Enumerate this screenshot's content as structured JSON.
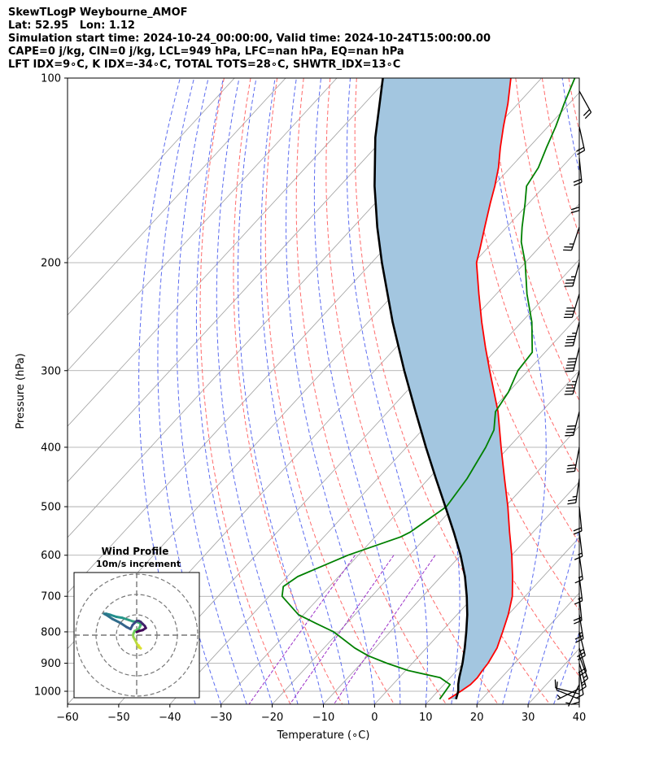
{
  "chart_data": {
    "type": "line",
    "title_lines": [
      "SkewTLogP Weybourne_AMOF",
      "Lat: 52.95   Lon: 1.12",
      "Simulation start time: 2024-10-24_00:00:00, Valid time: 2024-10-24T15:00:00.00",
      "CAPE=0 j/kg, CIN=0 j/kg, LCL=949 hPa, LFC=nan hPa, EQ=nan hPa",
      "LFT IDX=9∘C, K IDX=-34∘C, TOTAL TOTS=28∘C, SHWTR_IDX=13∘C"
    ],
    "xlabel": "Temperature (∘C)",
    "ylabel": "Pressure (hPa)",
    "xlim": [
      -60,
      40
    ],
    "ylim": [
      1050,
      100
    ],
    "y_scale": "log",
    "x_ticks": [
      "−60",
      "−50",
      "−40",
      "−30",
      "−20",
      "−10",
      "0",
      "10",
      "20",
      "30",
      "40"
    ],
    "y_ticks": [
      "100",
      "200",
      "300",
      "400",
      "500",
      "600",
      "700",
      "800",
      "900",
      "1000"
    ],
    "grid": true,
    "colors": {
      "temperature": "#ff0000",
      "dewpoint": "#008000",
      "parcel": "#000000",
      "shading": "#a3c6e0",
      "dry_adiabat": "#ff6b6b",
      "moist_adiabat": "#5c6cf0",
      "mixing_ratio": "#9b30c8",
      "isotherm": "#a0a0a0"
    },
    "series": [
      {
        "id": "temperature",
        "pressure": [
          1030,
          1000,
          975,
          950,
          925,
          900,
          850,
          800,
          750,
          700,
          650,
          600,
          550,
          500,
          450,
          400,
          350,
          300,
          275,
          250,
          225,
          200,
          190,
          175,
          160,
          150,
          140,
          130,
          120,
          110,
          100
        ],
        "values": [
          13.5,
          14.5,
          15.2,
          15.3,
          15.0,
          14.8,
          13.8,
          12.0,
          10.0,
          7.5,
          4.0,
          0.0,
          -4.6,
          -9.5,
          -15.2,
          -21.5,
          -28.5,
          -37.5,
          -42.5,
          -47.8,
          -53.4,
          -59.5,
          -61.3,
          -64.3,
          -67.5,
          -69.7,
          -72.3,
          -75.5,
          -78.7,
          -82.0,
          -86.0
        ]
      },
      {
        "id": "dewpoint",
        "pressure": [
          1030,
          1000,
          975,
          950,
          925,
          900,
          875,
          850,
          800,
          775,
          750,
          700,
          675,
          650,
          600,
          560,
          550,
          500,
          450,
          400,
          375,
          350,
          325,
          300,
          280,
          250,
          225,
          200,
          185,
          175,
          160,
          150,
          140,
          130,
          120,
          110,
          100
        ],
        "values": [
          11.8,
          11.5,
          11.2,
          8.0,
          0.5,
          -5.0,
          -10.0,
          -14.0,
          -21.0,
          -26.0,
          -31.0,
          -37.5,
          -39.0,
          -38.0,
          -32.0,
          -25.0,
          -24.0,
          -21.5,
          -22.5,
          -24.5,
          -26.0,
          -29.0,
          -30.0,
          -32.0,
          -32.5,
          -38.0,
          -44.0,
          -50.0,
          -54.5,
          -57.0,
          -60.7,
          -63.5,
          -64.5,
          -66.5,
          -68.5,
          -71.0,
          -73.5
        ]
      },
      {
        "id": "parcel",
        "pressure": [
          1030,
          1000,
          975,
          949,
          900,
          850,
          800,
          750,
          700,
          650,
          600,
          550,
          500,
          450,
          400,
          350,
          300,
          250,
          200,
          175,
          150,
          125,
          100
        ],
        "values": [
          15.0,
          14.0,
          12.8,
          11.7,
          9.8,
          7.5,
          4.9,
          2.0,
          -1.4,
          -5.3,
          -10.0,
          -15.5,
          -21.7,
          -28.6,
          -36.2,
          -44.6,
          -54.2,
          -65.2,
          -78.0,
          -85.3,
          -93.2,
          -101.8,
          -111.0
        ]
      }
    ],
    "wind_barbs": {
      "pressure": [
        1030,
        1010,
        990,
        975,
        950,
        925,
        900,
        875,
        850,
        800,
        750,
        700,
        650,
        600,
        550,
        500,
        450,
        400,
        350,
        300,
        275,
        250,
        225,
        200,
        175,
        150,
        135,
        120,
        105
      ],
      "u_ms": [
        5,
        4,
        2,
        1,
        0,
        -1,
        -2,
        -3,
        -3,
        -3,
        -2,
        -1,
        -1,
        -1,
        -1,
        -1,
        2,
        3,
        5,
        6,
        6,
        6,
        6,
        5,
        4,
        0,
        -1,
        -2,
        -5
      ],
      "v_ms": [
        -2,
        -1,
        1,
        2,
        4,
        6,
        7,
        8,
        10,
        12,
        12,
        10,
        8,
        7,
        8,
        10,
        14,
        16,
        20,
        22,
        24,
        23,
        20,
        18,
        12,
        10,
        10,
        9,
        9
      ]
    },
    "hodograph": {
      "title": "Wind Profile",
      "subtitle": "10m/s increment",
      "u": [
        1,
        1.5,
        2,
        1,
        0,
        -1,
        -1.6,
        -1.8,
        -1.5,
        -1,
        0,
        1,
        1.5,
        2,
        1.5,
        0,
        -2,
        -4,
        -7,
        -10,
        -13,
        -15,
        -16,
        -15,
        -12,
        -8,
        -5,
        -3,
        -2,
        -1,
        0,
        1,
        2,
        3,
        4,
        4.5,
        3,
        1,
        0
      ],
      "v": [
        -5,
        -6,
        -6.5,
        -6,
        -4,
        -2,
        -1,
        0,
        1,
        2,
        2.5,
        3,
        4,
        5,
        6,
        6.5,
        6.8,
        7.5,
        8.5,
        9,
        10,
        10.5,
        10.5,
        10,
        8,
        6,
        4,
        3,
        5,
        6,
        7,
        7,
        6.5,
        5.5,
        4.5,
        3.5,
        2.5,
        2,
        1.5
      ],
      "rings_ms": [
        10,
        20,
        30
      ],
      "colormap": "viridis"
    }
  }
}
